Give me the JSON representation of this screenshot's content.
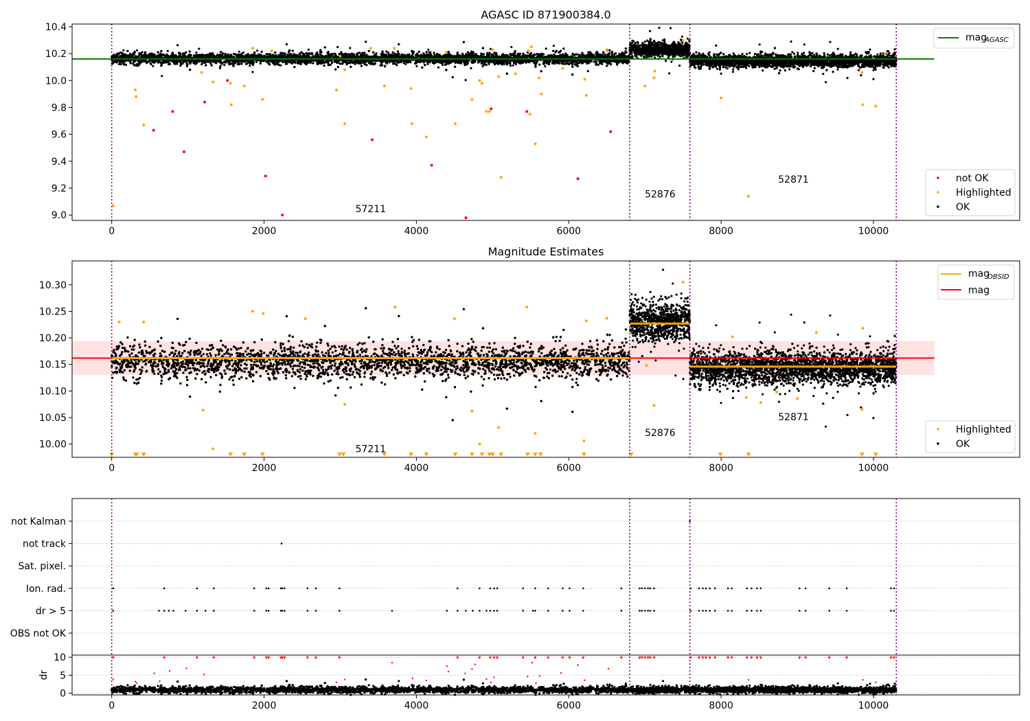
{
  "chart_data": [
    {
      "type": "scatter",
      "title": "AGASC ID 871900384.0",
      "xlabel": "",
      "ylabel": "",
      "xlim": [
        -520,
        11920
      ],
      "ylim": [
        8.96,
        10.42
      ],
      "x_ticks": [
        0,
        2000,
        4000,
        6000,
        8000,
        10000
      ],
      "y_ticks": [
        9.0,
        9.2,
        9.4,
        9.6,
        9.8,
        10.0,
        10.2,
        10.4
      ],
      "y_tick_labels": [
        "9.0",
        "9.2",
        "9.4",
        "9.6",
        "9.8",
        "10.0",
        "10.2",
        "10.4"
      ],
      "obs_boundaries": [
        0,
        6800,
        7590,
        10300
      ],
      "obs_labels": [
        {
          "text": "57211",
          "x": 3400,
          "y": 9.02
        },
        {
          "text": "52876",
          "x": 7200,
          "y": 9.13
        },
        {
          "text": "52871",
          "x": 8950,
          "y": 9.24
        }
      ],
      "series": [
        {
          "name": "mag",
          "subscript": "AGASC",
          "kind": "line",
          "color": "#008000",
          "x": [
            -520,
            10800
          ],
          "y": [
            10.16,
            10.16
          ]
        },
        {
          "name": "not OK",
          "kind": "points",
          "color": "#ff0000",
          "x": [
            550,
            800,
            950,
            1220,
            1520,
            2020,
            2240,
            3420,
            4200,
            4650,
            4980,
            5450,
            6120,
            6550
          ],
          "y": [
            9.63,
            9.77,
            9.47,
            9.84,
            10.0,
            9.29,
            9.0,
            9.56,
            9.37,
            8.98,
            9.79,
            9.77,
            9.27,
            9.62
          ]
        },
        {
          "name": "Highlighted",
          "kind": "points",
          "color": "#ffa500",
          "x": [
            20,
            310,
            320,
            420,
            1180,
            1330,
            1560,
            1570,
            1740,
            1980,
            2950,
            3060,
            3060,
            3400,
            3580,
            3710,
            3930,
            3940,
            4130,
            4390,
            4510,
            4730,
            4830,
            4860,
            4920,
            4960,
            5000,
            5080,
            5110,
            5490,
            5510,
            5560,
            5610,
            5640,
            6210,
            6230,
            6500,
            7000,
            7120,
            7130,
            7500,
            8000,
            8360,
            9850,
            9860,
            10030,
            10150,
            1850,
            2100,
            3000,
            5300,
            5470,
            5920
          ],
          "y": [
            9.07,
            9.93,
            9.88,
            9.67,
            10.06,
            9.99,
            9.98,
            9.82,
            9.96,
            9.86,
            9.93,
            9.68,
            10.08,
            10.24,
            9.96,
            10.24,
            9.94,
            9.68,
            9.58,
            10.21,
            9.68,
            9.86,
            10.0,
            9.98,
            9.77,
            9.77,
            10.23,
            10.03,
            9.28,
            9.75,
            10.25,
            9.53,
            10.02,
            9.9,
            10.01,
            9.89,
            10.23,
            9.96,
            10.02,
            10.07,
            10.3,
            9.87,
            9.14,
            10.06,
            9.82,
            9.81,
            10.2,
            10.24,
            10.22,
            10.18,
            10.05,
            10.22,
            10.09
          ]
        },
        {
          "name": "OK",
          "kind": "band",
          "color": "#000000",
          "segments": [
            {
              "x0": 0,
              "x1": 6800,
              "center": 10.162,
              "spread": 0.035
            },
            {
              "x0": 6800,
              "x1": 7590,
              "center": 10.23,
              "spread": 0.045
            },
            {
              "x0": 7590,
              "x1": 10300,
              "center": 10.145,
              "spread": 0.04
            }
          ]
        }
      ],
      "legend_top": "upper right",
      "legend_bottom": "lower right"
    },
    {
      "type": "scatter",
      "title": "Magnitude Estimates",
      "xlim": [
        -520,
        11920
      ],
      "ylim": [
        9.975,
        10.345
      ],
      "x_ticks": [
        0,
        2000,
        4000,
        6000,
        8000,
        10000
      ],
      "y_ticks": [
        10.0,
        10.05,
        10.1,
        10.15,
        10.2,
        10.25,
        10.3
      ],
      "y_tick_labels": [
        "10.00",
        "10.05",
        "10.10",
        "10.15",
        "10.20",
        "10.25",
        "10.30"
      ],
      "obs_boundaries": [
        0,
        6800,
        7590,
        10300
      ],
      "obs_labels": [
        {
          "text": "57211",
          "x": 3400,
          "y": 9.985
        },
        {
          "text": "52876",
          "x": 7200,
          "y": 10.015
        },
        {
          "text": "52871",
          "x": 8950,
          "y": 10.045
        }
      ],
      "series": [
        {
          "name": "mag",
          "kind": "line",
          "color": "#ff0000",
          "x": [
            -520,
            10800
          ],
          "y": [
            10.162,
            10.162
          ],
          "band": {
            "y0": 10.13,
            "y1": 10.194,
            "color": "#ffd6d6"
          }
        },
        {
          "name": "mag",
          "subscript": "OBSID",
          "kind": "steps",
          "color": "#ffa500",
          "segments": [
            {
              "x0": 0,
              "x1": 6800,
              "y": 10.162
            },
            {
              "x0": 6800,
              "x1": 7590,
              "y": 10.227
            },
            {
              "x0": 7590,
              "x1": 10300,
              "y": 10.146
            }
          ]
        },
        {
          "name": "Highlighted",
          "kind": "points",
          "color": "#ffa500",
          "x": [
            100,
            420,
            1200,
            1330,
            1850,
            1990,
            2540,
            3060,
            3720,
            4500,
            4730,
            4830,
            5080,
            5450,
            5560,
            6200,
            6230,
            6500,
            7020,
            7120,
            7500,
            8150,
            8330,
            8520,
            8730,
            9000,
            9250,
            9850,
            9860
          ],
          "y": [
            10.23,
            10.23,
            10.064,
            9.991,
            10.25,
            10.246,
            10.236,
            10.075,
            10.258,
            10.236,
            10.062,
            10.0,
            10.031,
            10.258,
            10.02,
            10.006,
            10.232,
            10.237,
            10.148,
            10.073,
            10.305,
            10.202,
            10.088,
            10.078,
            10.098,
            10.086,
            10.21,
            10.065,
            10.218
          ]
        },
        {
          "name": "Highlighted",
          "kind": "clipped",
          "color": "#ffa500",
          "x": [
            0,
            310,
            330,
            420,
            1560,
            1740,
            1980,
            2990,
            3040,
            3580,
            3930,
            4130,
            4510,
            4730,
            4860,
            4960,
            5000,
            5110,
            5460,
            5560,
            5630,
            6200,
            6820,
            7990,
            8360,
            9850,
            10030
          ]
        },
        {
          "name": "OK",
          "kind": "band",
          "color": "#000000",
          "segments": [
            {
              "x0": 0,
              "x1": 6800,
              "center": 10.155,
              "spread": 0.028
            },
            {
              "x0": 6800,
              "x1": 7590,
              "center": 10.23,
              "spread": 0.032
            },
            {
              "x0": 7590,
              "x1": 10300,
              "center": 10.143,
              "spread": 0.028
            }
          ]
        }
      ],
      "legend_top": "upper right",
      "legend_bottom": "lower right"
    },
    {
      "type": "scatter",
      "xlim": [
        -520,
        11920
      ],
      "flag_rows": [
        "not Kalman",
        "not track",
        "Sat. pixel.",
        "Ion. rad.",
        "dr > 5",
        "OBS not OK"
      ],
      "flags": {
        "not Kalman": [
          7590
        ],
        "not track": [
          2230
        ],
        "Sat. pixel.": [],
        "Ion. rad.": [
          20,
          690,
          1120,
          1340,
          1870,
          2030,
          2060,
          2220,
          2240,
          2270,
          2570,
          2680,
          2990,
          4540,
          4830,
          4970,
          5020,
          5060,
          5400,
          5560,
          5730,
          5920,
          6010,
          6190,
          6690,
          6930,
          6960,
          7000,
          7040,
          7070,
          7120,
          7600,
          7710,
          7760,
          7800,
          7850,
          7920,
          8090,
          8140,
          8340,
          8400,
          8470,
          8520,
          9030,
          9110,
          9420,
          9650,
          10230,
          10270
        ],
        "dr > 5": [
          20,
          620,
          690,
          750,
          810,
          970,
          1120,
          1230,
          1340,
          1870,
          2030,
          2060,
          2220,
          2240,
          2270,
          2570,
          2680,
          2990,
          3680,
          4400,
          4540,
          4650,
          4740,
          4830,
          4920,
          4970,
          5020,
          5060,
          5400,
          5530,
          5560,
          5730,
          5920,
          6010,
          6190,
          6690,
          6930,
          6960,
          7000,
          7040,
          7070,
          7120,
          7600,
          7710,
          7760,
          7800,
          7850,
          7920,
          8090,
          8140,
          8340,
          8400,
          8470,
          8520,
          9030,
          9110,
          9420,
          9650,
          10230,
          10270
        ],
        "OBS not OK": []
      },
      "dr_panel": {
        "ylabel": "dr",
        "ylim": [
          -0.5,
          10.6
        ],
        "y_ticks": [
          0,
          5,
          10
        ],
        "y_tick_labels": [
          "0",
          "5",
          "10"
        ],
        "x_ticks": [
          0,
          2000,
          4000,
          6000,
          8000,
          10000
        ],
        "ok_band": {
          "center": 0.9,
          "spread": 0.8
        },
        "outliers": {
          "x": [
            20,
            310,
            330,
            560,
            630,
            760,
            980,
            1210,
            2950,
            3060,
            3680,
            3950,
            4130,
            4400,
            4420,
            4640,
            4730,
            4770,
            4920,
            4980,
            5020,
            5460,
            5520,
            5570,
            5620,
            5900,
            6120,
            6210,
            6520,
            8360,
            9860,
            10030
          ],
          "y": [
            3.8,
            3.2,
            2.8,
            5.5,
            3.3,
            6.2,
            6.9,
            5.2,
            3.0,
            3.8,
            8.5,
            4.1,
            3.5,
            7.5,
            6.0,
            5.5,
            6.7,
            8.0,
            3.9,
            3.0,
            4.4,
            4.6,
            8.5,
            2.8,
            4.8,
            5.6,
            7.8,
            3.6,
            6.8,
            3.7,
            3.7,
            3.0
          ]
        },
        "clipped_x": [
          20,
          690,
          1120,
          1340,
          1870,
          2030,
          2060,
          2220,
          2240,
          2270,
          2570,
          2680,
          2990,
          4540,
          4830,
          4970,
          5020,
          5060,
          5400,
          5560,
          5730,
          5920,
          6010,
          6190,
          6690,
          6930,
          6960,
          7000,
          7040,
          7070,
          7120,
          7600,
          7710,
          7760,
          7800,
          7850,
          7920,
          8090,
          8140,
          8340,
          8400,
          8470,
          8520,
          9030,
          9110,
          9420,
          9650,
          10230,
          10270
        ]
      },
      "obs_boundaries": [
        0,
        6800,
        7590,
        10300
      ]
    }
  ],
  "legends": {
    "top": {
      "line_label": "mag",
      "line_sub": "AGASC",
      "items": [
        "not OK",
        "Highlighted",
        "OK"
      ]
    },
    "middle": {
      "line1_label": "mag",
      "line1_sub": "OBSID",
      "line2_label": "mag",
      "items": [
        "Highlighted",
        "OK"
      ]
    }
  },
  "colors": {
    "ok": "#000000",
    "highlighted": "#ffa500",
    "not_ok": "#ff0000",
    "boundary": "#800080",
    "agasc_line": "#008000",
    "mag_line": "#ff0000",
    "obsid_line": "#ffa500",
    "band": "#ffd6d6"
  }
}
